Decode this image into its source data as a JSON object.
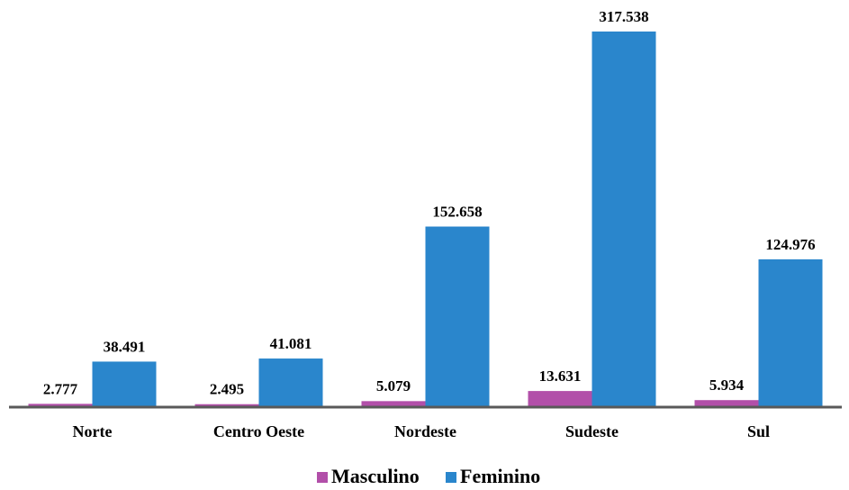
{
  "chart_data": {
    "type": "bar",
    "categories": [
      "Norte",
      "Centro Oeste",
      "Nordeste",
      "Sudeste",
      "Sul"
    ],
    "series": [
      {
        "name": "Masculino",
        "color": "#b24fa9",
        "values": [
          2777,
          2495,
          5079,
          13631,
          5934
        ],
        "value_labels": [
          "2.777",
          "2.495",
          "5.079",
          "13.631",
          "5.934"
        ]
      },
      {
        "name": "Feminino",
        "color": "#2a86cc",
        "values": [
          38491,
          41081,
          152658,
          317538,
          124976
        ],
        "value_labels": [
          "38.491",
          "41.081",
          "152.658",
          "317.538",
          "124.976"
        ]
      }
    ],
    "legend": "bottom"
  }
}
